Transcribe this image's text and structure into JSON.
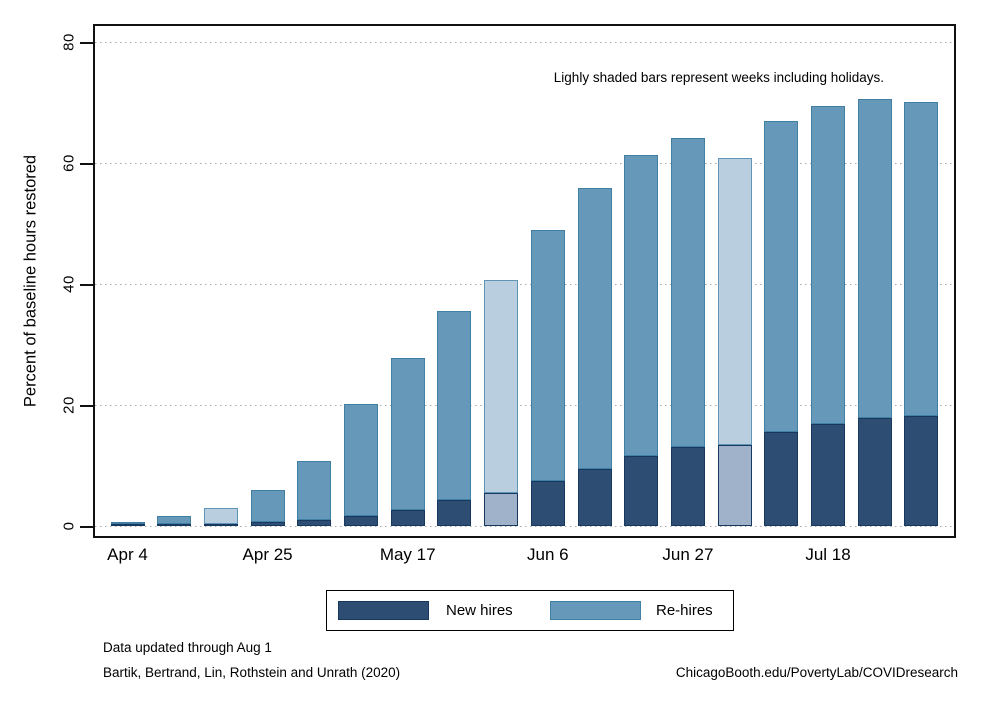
{
  "annotation": "Lighly shaded bars represent weeks including holidays.",
  "y_axis": {
    "title": "Percent of baseline hours restored",
    "tick_labels": [
      "0",
      "20",
      "40",
      "60",
      "80"
    ]
  },
  "x_axis": {
    "tick_labels": [
      "Apr 4",
      "Apr 25",
      "May 17",
      "Jun 6",
      "Jun 27",
      "Jul 18"
    ],
    "tick_bar_indices": [
      0,
      3,
      6,
      9,
      12,
      15
    ]
  },
  "legend": {
    "items": [
      {
        "label": "New hires",
        "fill": "#2e4d73",
        "border": "#17395f"
      },
      {
        "label": "Re-hires",
        "fill": "#6598b9",
        "border": "#417fa4"
      }
    ]
  },
  "footer": {
    "line1": "Data updated through Aug 1",
    "line2": "Bartik, Bertrand, Lin, Rothstein and Unrath (2020)",
    "right": "ChicagoBooth.edu/PovertyLab/COVIDresearch"
  },
  "colors": {
    "new_fill": "#2e4d73",
    "new_border": "#17395f",
    "rehire_fill": "#6598b9",
    "rehire_border": "#417fa4",
    "holiday_new_fill": "#9fb2ca",
    "holiday_new_border": "#17395f",
    "holiday_rehire_fill": "#b9cfdf",
    "holiday_rehire_border": "#6095b5",
    "grid": "#a9a9a9",
    "axis": "#111111"
  },
  "chart_data": {
    "type": "bar",
    "stacked": true,
    "title": "",
    "xlabel": "",
    "ylabel": "Percent of baseline hours restored",
    "ylim": [
      0,
      80
    ],
    "yticks": [
      0,
      20,
      40,
      60,
      80
    ],
    "grid": "horizontal-dotted",
    "legend_position": "bottom-center",
    "x_tick_labels": [
      "Apr 4",
      "Apr 25",
      "May 17",
      "Jun 6",
      "Jun 27",
      "Jul 18"
    ],
    "x_tick_bar_indices": [
      0,
      3,
      6,
      9,
      12,
      15
    ],
    "series_names": [
      "New hires",
      "Re-hires"
    ],
    "note": "Lighly shaded bars represent weeks including holidays.",
    "bars": [
      {
        "new_hires": 0.3,
        "re_hires": 0.4,
        "total": 0.7,
        "holiday": false
      },
      {
        "new_hires": 0.3,
        "re_hires": 1.4,
        "total": 1.7,
        "holiday": false
      },
      {
        "new_hires": 0.3,
        "re_hires": 2.7,
        "total": 3.0,
        "holiday": true
      },
      {
        "new_hires": 0.6,
        "re_hires": 5.3,
        "total": 5.9,
        "holiday": false
      },
      {
        "new_hires": 1.0,
        "re_hires": 9.7,
        "total": 10.7,
        "holiday": false
      },
      {
        "new_hires": 1.7,
        "re_hires": 18.4,
        "total": 20.1,
        "holiday": false
      },
      {
        "new_hires": 2.7,
        "re_hires": 25.0,
        "total": 27.7,
        "holiday": false
      },
      {
        "new_hires": 4.3,
        "re_hires": 31.2,
        "total": 35.5,
        "holiday": false
      },
      {
        "new_hires": 5.4,
        "re_hires": 35.3,
        "total": 40.7,
        "holiday": true
      },
      {
        "new_hires": 7.4,
        "re_hires": 41.5,
        "total": 48.9,
        "holiday": false
      },
      {
        "new_hires": 9.4,
        "re_hires": 46.4,
        "total": 55.8,
        "holiday": false
      },
      {
        "new_hires": 11.5,
        "re_hires": 49.9,
        "total": 61.4,
        "holiday": false
      },
      {
        "new_hires": 13.1,
        "re_hires": 51.0,
        "total": 64.1,
        "holiday": false
      },
      {
        "new_hires": 13.4,
        "re_hires": 47.5,
        "total": 60.9,
        "holiday": true
      },
      {
        "new_hires": 15.5,
        "re_hires": 51.5,
        "total": 67.0,
        "holiday": false
      },
      {
        "new_hires": 16.9,
        "re_hires": 52.5,
        "total": 69.4,
        "holiday": false
      },
      {
        "new_hires": 17.9,
        "re_hires": 52.7,
        "total": 70.6,
        "holiday": false
      },
      {
        "new_hires": 18.2,
        "re_hires": 51.9,
        "total": 70.1,
        "holiday": false
      }
    ]
  }
}
